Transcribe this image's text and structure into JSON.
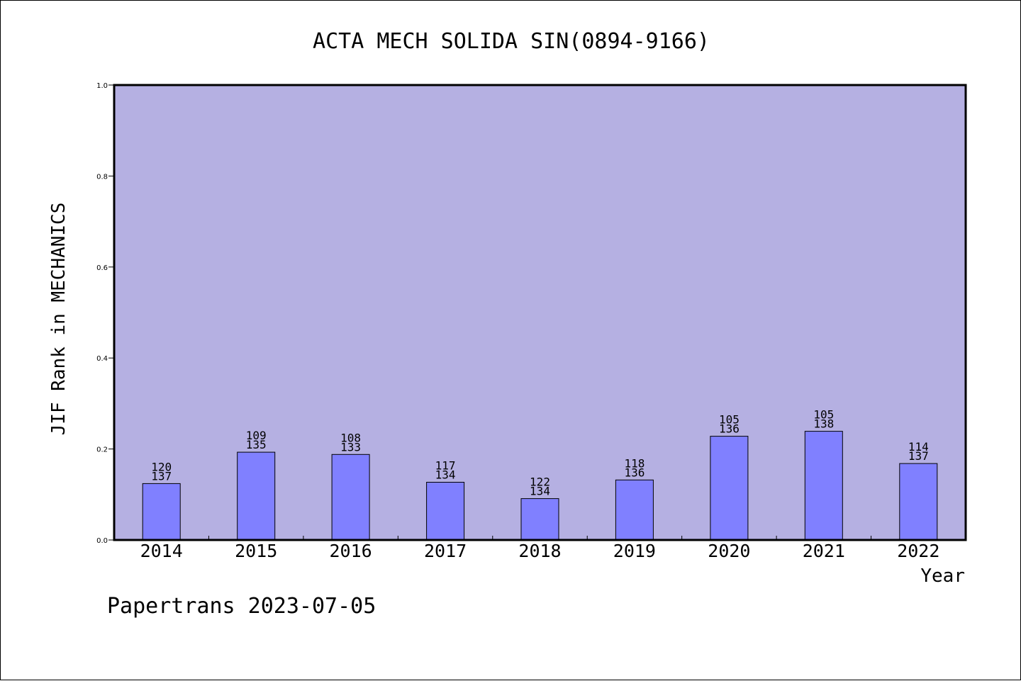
{
  "chart_data": {
    "type": "bar",
    "title": "ACTA MECH SOLIDA SIN(0894-9166)",
    "xlabel": "Year",
    "ylabel": "JIF Rank in MECHANICS",
    "ylim": [
      0,
      1.0
    ],
    "yticks": [
      "0.0",
      "0.2",
      "0.4",
      "0.6",
      "0.8",
      "1.0"
    ],
    "categories": [
      "2014",
      "2015",
      "2016",
      "2017",
      "2018",
      "2019",
      "2020",
      "2021",
      "2022"
    ],
    "values": [
      0.124,
      0.193,
      0.188,
      0.127,
      0.091,
      0.132,
      0.228,
      0.239,
      0.168
    ],
    "labels_top": [
      "120",
      "109",
      "108",
      "117",
      "122",
      "118",
      "105",
      "105",
      "114"
    ],
    "labels_bottom": [
      "137",
      "135",
      "133",
      "134",
      "134",
      "136",
      "136",
      "138",
      "137"
    ],
    "grid": false,
    "colors": {
      "plot_background": "#b5b0e2",
      "bar_fill": "#8080ff",
      "bar_stroke": "#000000"
    }
  },
  "footer": "Papertrans 2023-07-05"
}
